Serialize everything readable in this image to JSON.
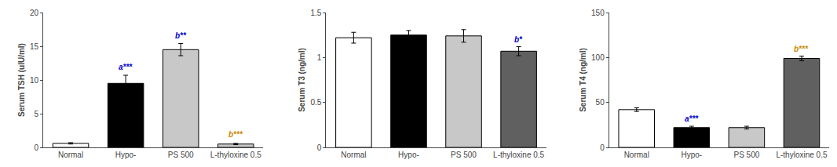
{
  "chart_data": [
    {
      "type": "bar",
      "ylabel": "Serum TSH (uIU/ml)",
      "categories": [
        "Normal",
        "Hypo-",
        "PS 500",
        "L-thyloxine 0.5"
      ],
      "values": [
        0.6,
        9.5,
        14.5,
        0.5
      ],
      "errors": [
        0.1,
        1.2,
        0.9,
        0.1
      ],
      "colors": [
        "#ffffff",
        "#000000",
        "#c8c8c8",
        "#c8c8c8"
      ],
      "ylim": [
        0,
        20
      ],
      "yticks": [
        0,
        5,
        10,
        15,
        20
      ],
      "grid": false,
      "annotations": [
        {
          "text": "a***",
          "x": 1,
          "y": 11.0,
          "color": "#0000cc"
        },
        {
          "text": "b**",
          "x": 2,
          "y": 15.7,
          "color": "#0000cc"
        },
        {
          "text": "b***",
          "x": 3,
          "y": 1.0,
          "color": "#cc8800"
        }
      ]
    },
    {
      "type": "bar",
      "ylabel": "Serum T3 (ng/ml)",
      "categories": [
        "Normal",
        "Hypo-",
        "PS 500",
        "L-thyloxine 0.5"
      ],
      "values": [
        1.22,
        1.25,
        1.24,
        1.07
      ],
      "errors": [
        0.06,
        0.05,
        0.07,
        0.05
      ],
      "colors": [
        "#ffffff",
        "#000000",
        "#c8c8c8",
        "#606060"
      ],
      "ylim": [
        0.0,
        1.5
      ],
      "yticks": [
        0.0,
        0.5,
        1.0,
        1.5
      ],
      "grid": false,
      "annotations": [
        {
          "text": "b*",
          "x": 3,
          "y": 1.13,
          "color": "#0000cc"
        }
      ]
    },
    {
      "type": "bar",
      "ylabel": "Serum T4 (ng/ml)",
      "categories": [
        "Normal",
        "Hypo-",
        "PS 500",
        "L-thyloxine 0.5"
      ],
      "values": [
        42,
        22,
        22,
        99
      ],
      "errors": [
        2,
        1.5,
        1.5,
        2.5
      ],
      "colors": [
        "#ffffff",
        "#000000",
        "#c8c8c8",
        "#606060"
      ],
      "ylim": [
        0,
        150
      ],
      "yticks": [
        0,
        50,
        100,
        150
      ],
      "grid": false,
      "annotations": [
        {
          "text": "a***",
          "x": 1,
          "y": 25,
          "color": "#0000cc"
        },
        {
          "text": "b***",
          "x": 3,
          "y": 103,
          "color": "#cc8800"
        }
      ]
    }
  ]
}
